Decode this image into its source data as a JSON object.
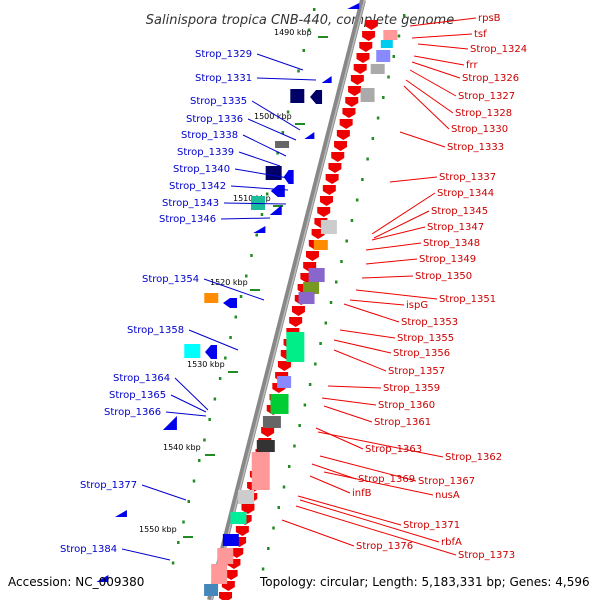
{
  "title": "Salinispora tropica CNB-440, complete genome",
  "footer": {
    "accession": "Accession: NC_009380",
    "topology": "Topology: circular; Length: 5,183,331 bp; Genes: 4,596"
  },
  "colors": {
    "left_label": "#0000cc",
    "right_label": "#cc0000",
    "backbone": "#888888",
    "ticks": "#228b22"
  },
  "kbp_marks": [
    {
      "label": "1490 kbp"
    },
    {
      "label": "1500 kbp"
    },
    {
      "label": "1510 kbp"
    },
    {
      "label": "1520 kbp"
    },
    {
      "label": "1530 kbp"
    },
    {
      "label": "1540 kbp"
    },
    {
      "label": "1550 kbp"
    }
  ],
  "left_labels": [
    "Strop_1329",
    "Strop_1331",
    "Strop_1335",
    "Strop_1336",
    "Strop_1338",
    "Strop_1339",
    "Strop_1340",
    "Strop_1342",
    "Strop_1343",
    "Strop_1346",
    "Strop_1354",
    "Strop_1358",
    "Strop_1364",
    "Strop_1365",
    "Strop_1366",
    "Strop_1377",
    "Strop_1384"
  ],
  "right_labels": [
    "rpsB",
    "tsf",
    "Strop_1324",
    "frr",
    "Strop_1326",
    "Strop_1327",
    "Strop_1328",
    "Strop_1330",
    "Strop_1333",
    "Strop_1337",
    "Strop_1344",
    "Strop_1345",
    "Strop_1347",
    "Strop_1348",
    "Strop_1349",
    "Strop_1350",
    "Strop_1351",
    "ispG",
    "Strop_1353",
    "Strop_1355",
    "Strop_1356",
    "Strop_1357",
    "Strop_1359",
    "Strop_1360",
    "Strop_1361",
    "Strop_1363",
    "Strop_1362",
    "Strop_1367",
    "Strop_1369",
    "nusA",
    "infB",
    "Strop_1371",
    "rbfA",
    "Strop_1373",
    "Strop_1376"
  ]
}
